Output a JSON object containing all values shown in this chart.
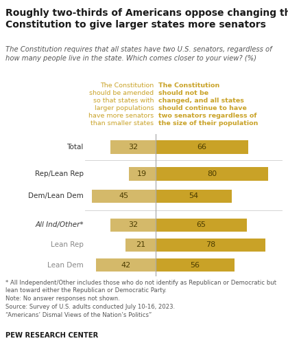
{
  "title": "Roughly two-thirds of Americans oppose changing the\nConstitution to give larger states more senators",
  "subtitle": "The Constitution requires that all states have two U.S. senators, regardless of\nhow many people live in the state. Which comes closer to your view? (%)",
  "col1_header": "The Constitution\nshould be amended\nso that states with\nlarger populations\nhave more senators\nthan smaller states",
  "col2_header": "The Constitution\nshould not be\nchanged, and all states\nshould continue to have\ntwo senators regardless of\nthe size of their population",
  "categories": [
    "Total",
    "Rep/Lean Rep",
    "Dem/Lean Dem",
    "All Ind/Other*",
    "Lean Rep",
    "Lean Dem"
  ],
  "italic_categories": [
    false,
    false,
    false,
    true,
    false,
    false
  ],
  "light_categories": [
    false,
    false,
    false,
    false,
    true,
    true
  ],
  "values_left": [
    32,
    19,
    45,
    32,
    21,
    42
  ],
  "values_right": [
    66,
    80,
    54,
    65,
    78,
    56
  ],
  "color_left": "#D4B96A",
  "color_right": "#C9A227",
  "divider_color": "#aaaaaa",
  "background_color": "#ffffff",
  "footnote_line1": "* All Independent/Other includes those who do not identify as Republican or Democratic but",
  "footnote_line2": "lean toward either the Republican or Democratic Party.",
  "footnote_line3": "Note: No answer responses not shown.",
  "footnote_line4": "Source: Survey of U.S. adults conducted July 10-16, 2023.",
  "footnote_line5": "“Americans’ Dismal Views of the Nation’s Politics”",
  "pew_label": "PEW RESEARCH CENTER",
  "col1_color": "#C9A227",
  "col2_color": "#C9A227",
  "cat_label_color": "#333333",
  "cat_light_color": "#888888",
  "text_color_in_bar": "#4a3b00"
}
